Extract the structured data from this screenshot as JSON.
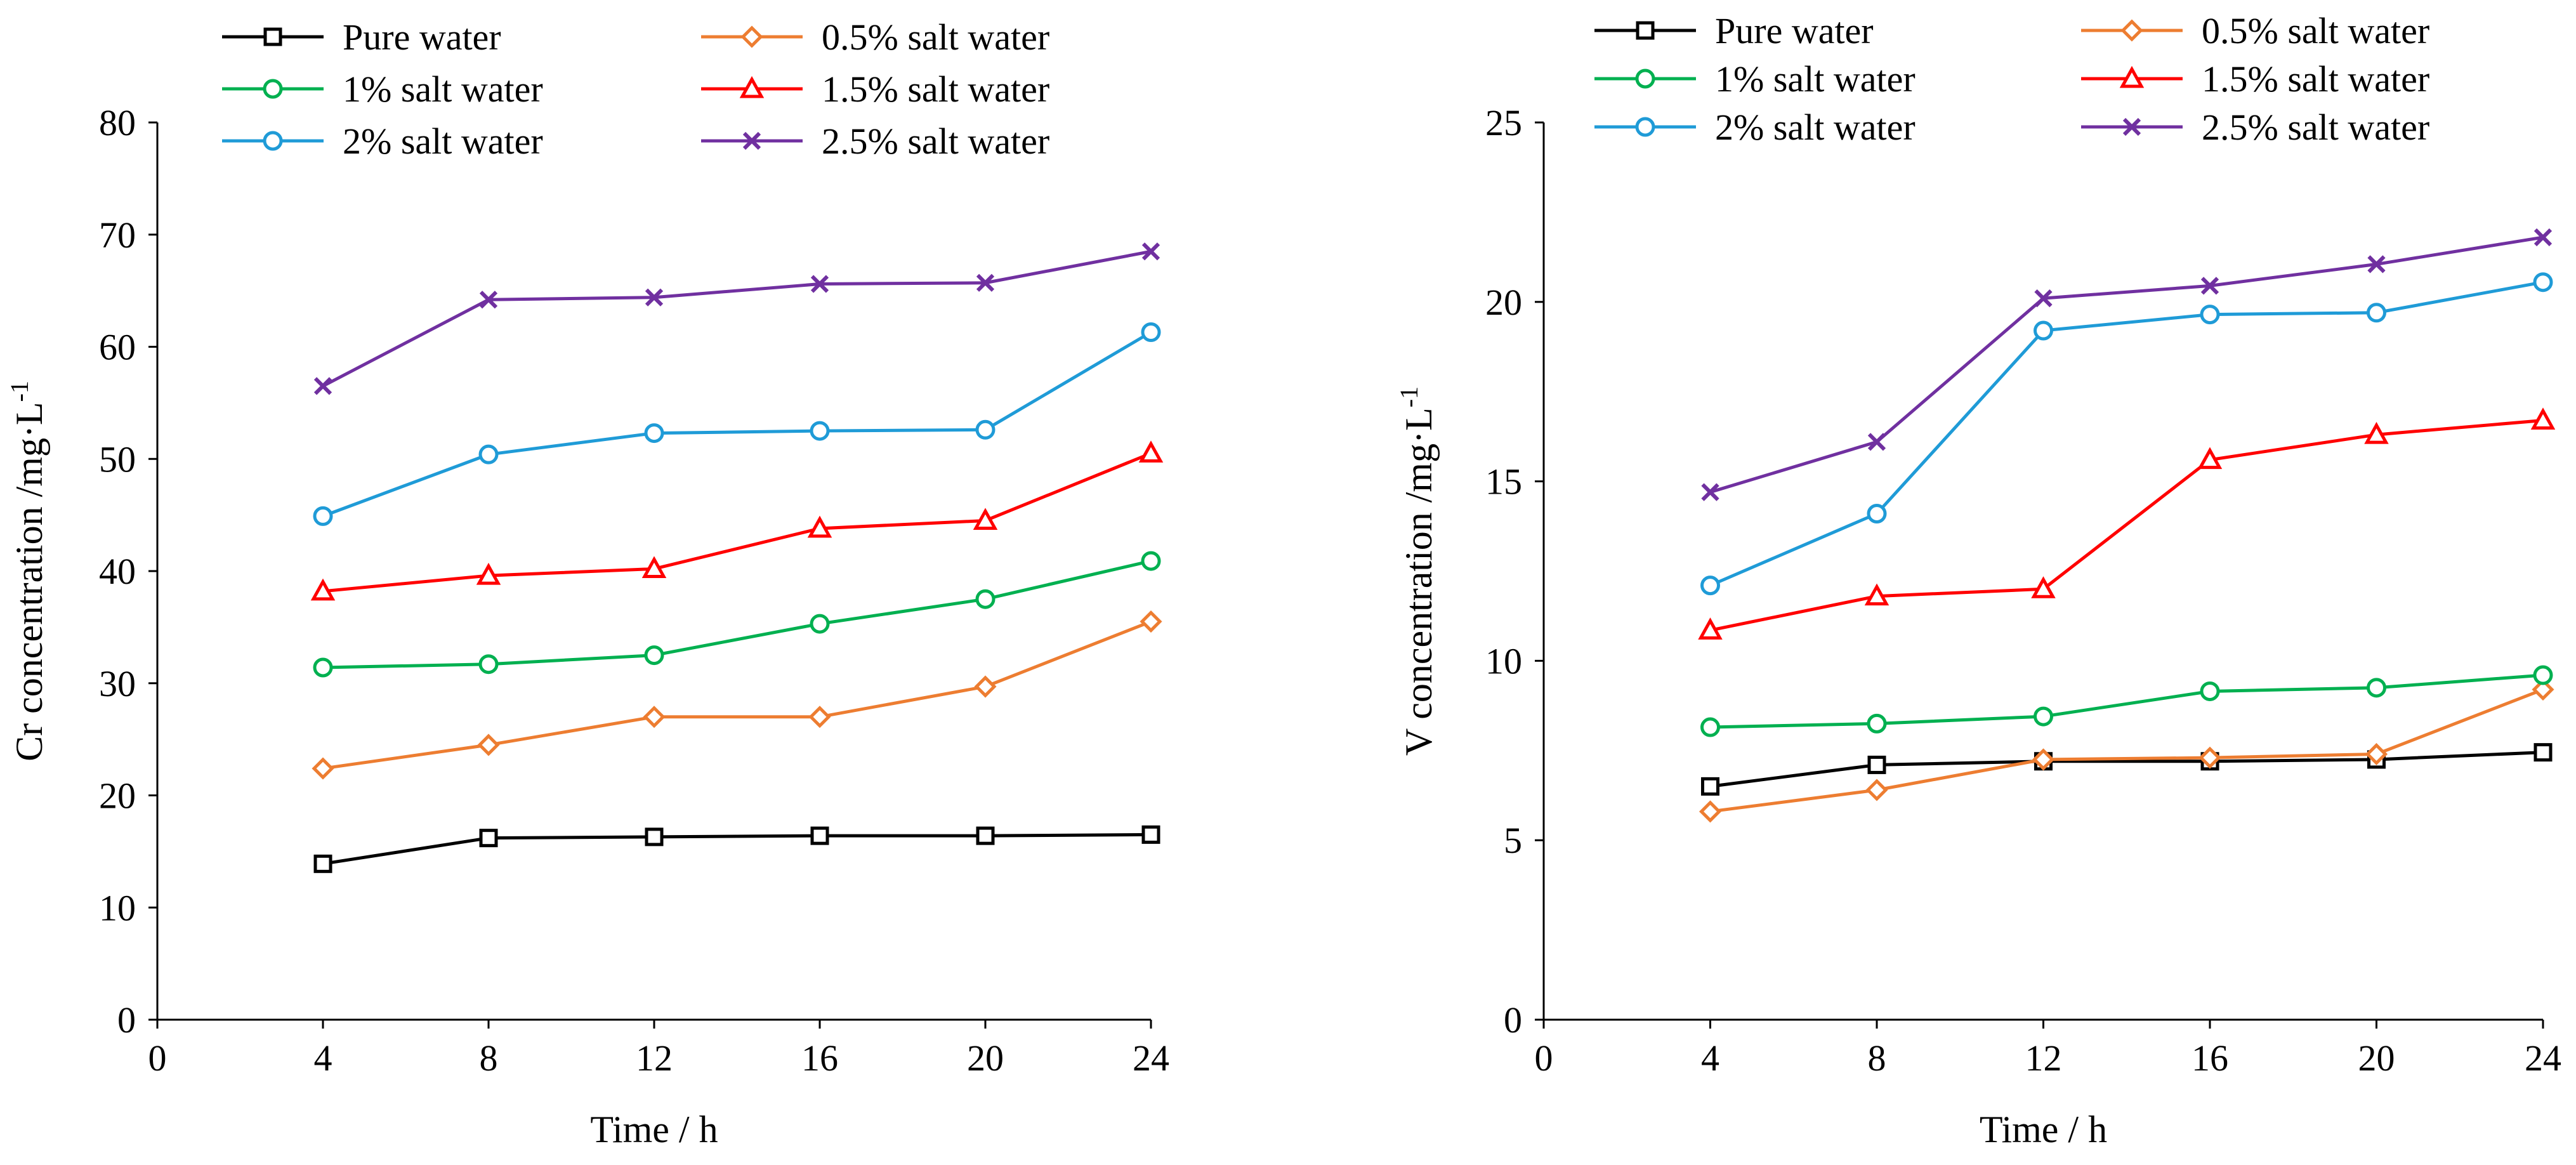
{
  "series_style": [
    {
      "name": "Pure water",
      "color": "#000000",
      "marker": "square"
    },
    {
      "name": "0.5% salt water",
      "color": "#ED7D31",
      "marker": "diamond"
    },
    {
      "name": "1% salt water",
      "color": "#00B050",
      "marker": "circle"
    },
    {
      "name": "1.5% salt water",
      "color": "#FF0000",
      "marker": "triangle"
    },
    {
      "name": "2% salt water",
      "color": "#1F9BD7",
      "marker": "circle"
    },
    {
      "name": "2.5% salt water",
      "color": "#7030A0",
      "marker": "x"
    }
  ],
  "chart_data": [
    {
      "type": "line",
      "title": "",
      "xlabel": "Time / h",
      "ylabel": "Cr concentration /mg·L",
      "ylabel_sup": "-1",
      "xlim": [
        0,
        24
      ],
      "ylim": [
        0,
        80
      ],
      "xticks": [
        0,
        4,
        8,
        12,
        16,
        20,
        24
      ],
      "yticks": [
        0,
        10,
        20,
        30,
        40,
        50,
        60,
        70,
        80
      ],
      "grid": false,
      "legend": "top, two columns",
      "x": [
        4,
        8,
        12,
        16,
        20,
        24
      ],
      "series": [
        {
          "name": "Pure water",
          "values": [
            13.9,
            16.2,
            16.3,
            16.4,
            16.4,
            16.5
          ]
        },
        {
          "name": "0.5% salt water",
          "values": [
            22.4,
            24.5,
            27.0,
            27.0,
            29.7,
            35.5
          ]
        },
        {
          "name": "1% salt water",
          "values": [
            31.4,
            31.7,
            32.5,
            35.3,
            37.5,
            40.9
          ]
        },
        {
          "name": "1.5% salt water",
          "values": [
            38.2,
            39.6,
            40.2,
            43.8,
            44.5,
            50.5
          ]
        },
        {
          "name": "2% salt water",
          "values": [
            44.9,
            50.4,
            52.3,
            52.5,
            52.6,
            61.3
          ]
        },
        {
          "name": "2.5% salt water",
          "values": [
            56.5,
            64.2,
            64.4,
            65.6,
            65.7,
            68.5
          ]
        }
      ]
    },
    {
      "type": "line",
      "title": "",
      "xlabel": "Time / h",
      "ylabel": "V concentration /mg·L",
      "ylabel_sup": "-1",
      "xlim": [
        0,
        24
      ],
      "ylim": [
        0,
        25
      ],
      "xticks": [
        0,
        4,
        8,
        12,
        16,
        20,
        24
      ],
      "yticks": [
        0,
        5,
        10,
        15,
        20,
        25
      ],
      "grid": false,
      "legend": "top, two columns",
      "x": [
        4,
        8,
        12,
        16,
        20,
        24
      ],
      "series": [
        {
          "name": "Pure water",
          "values": [
            6.5,
            7.1,
            7.2,
            7.2,
            7.25,
            7.45
          ]
        },
        {
          "name": "0.5% salt water",
          "values": [
            5.8,
            6.4,
            7.25,
            7.3,
            7.4,
            9.2
          ]
        },
        {
          "name": "1% salt water",
          "values": [
            8.15,
            8.25,
            8.45,
            9.15,
            9.25,
            9.6
          ]
        },
        {
          "name": "1.5% salt water",
          "values": [
            10.85,
            11.8,
            12.0,
            15.6,
            16.3,
            16.7
          ]
        },
        {
          "name": "2% salt water",
          "values": [
            12.1,
            14.1,
            19.2,
            19.65,
            19.7,
            20.55
          ]
        },
        {
          "name": "2.5% salt water",
          "values": [
            14.7,
            16.1,
            20.1,
            20.45,
            21.05,
            21.8
          ]
        }
      ]
    }
  ]
}
